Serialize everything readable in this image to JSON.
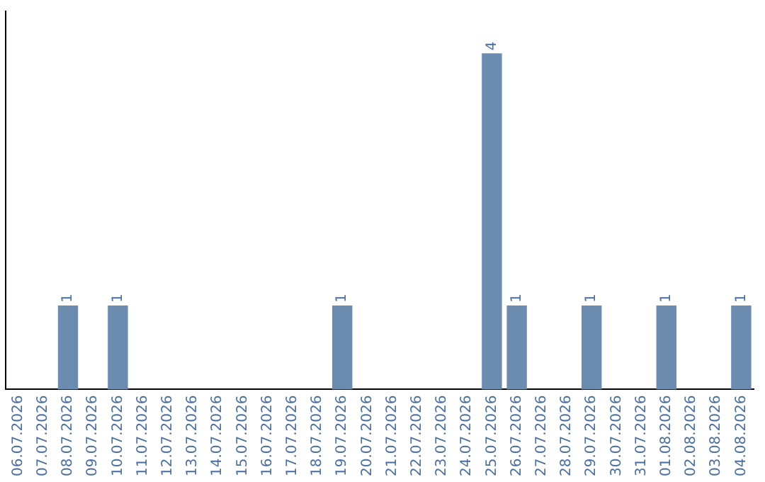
{
  "chart_data": {
    "type": "bar",
    "categories": [
      "06.07.2026",
      "07.07.2026",
      "08.07.2026",
      "09.07.2026",
      "10.07.2026",
      "11.07.2026",
      "12.07.2026",
      "13.07.2026",
      "14.07.2026",
      "15.07.2026",
      "16.07.2026",
      "17.07.2026",
      "18.07.2026",
      "19.07.2026",
      "20.07.2026",
      "21.07.2026",
      "22.07.2026",
      "23.07.2026",
      "24.07.2026",
      "25.07.2026",
      "26.07.2026",
      "27.07.2026",
      "28.07.2026",
      "29.07.2026",
      "30.07.2026",
      "31.07.2026",
      "01.08.2026",
      "02.08.2026",
      "03.08.2026",
      "04.08.2026"
    ],
    "values": [
      0,
      0,
      1,
      0,
      1,
      0,
      0,
      0,
      0,
      0,
      0,
      0,
      0,
      1,
      0,
      0,
      0,
      0,
      0,
      4,
      1,
      0,
      0,
      1,
      0,
      0,
      1,
      0,
      0,
      1
    ],
    "value_labels": [
      null,
      null,
      "1",
      null,
      "1",
      null,
      null,
      null,
      null,
      null,
      null,
      null,
      null,
      "1",
      null,
      null,
      null,
      null,
      null,
      "4",
      "1",
      null,
      null,
      "1",
      null,
      null,
      "1",
      null,
      null,
      "1"
    ],
    "color": "#6b8caf",
    "grid": false,
    "legend": false,
    "tick_labels": "x"
  }
}
